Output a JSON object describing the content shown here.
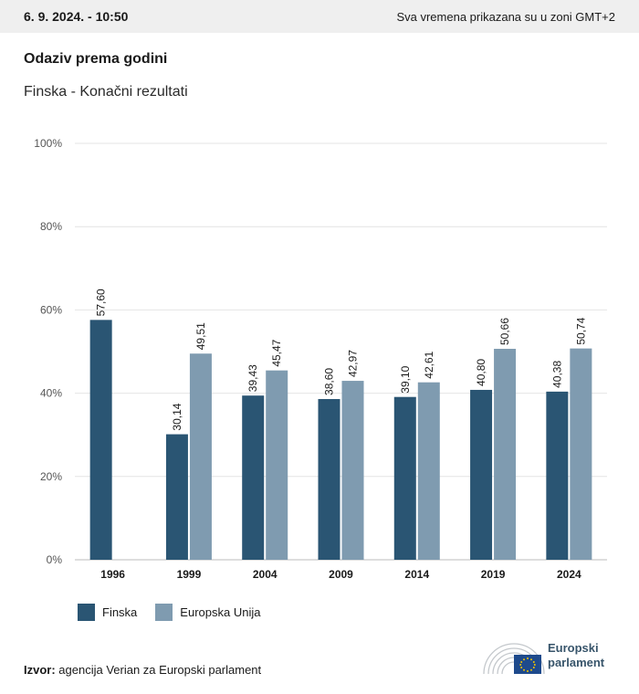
{
  "header": {
    "date": "6. 9. 2024. - 10:50",
    "timezone_note": "Sva vremena prikazana su u zoni GMT+2"
  },
  "title": "Odaziv prema godini",
  "subtitle": "Finska - Konačni rezultati",
  "legend": {
    "items": [
      {
        "label": "Finska",
        "color": "#2a5573"
      },
      {
        "label": "Europska Unija",
        "color": "#7f9bb0"
      }
    ]
  },
  "source": {
    "label": "Izvor:",
    "text": "agencija Verian za Europski parlament"
  },
  "logo": {
    "line1": "Europski",
    "line2": "parlament"
  },
  "chart_data": {
    "type": "bar",
    "categories": [
      "1996",
      "1999",
      "2004",
      "2009",
      "2014",
      "2019",
      "2024"
    ],
    "series": [
      {
        "name": "Finska",
        "color": "#2a5573",
        "values": [
          57.6,
          30.14,
          39.43,
          38.6,
          39.1,
          40.8,
          40.38
        ],
        "labels": [
          "57,60",
          "30,14",
          "39,43",
          "38,60",
          "39,10",
          "40,80",
          "40,38"
        ]
      },
      {
        "name": "Europska Unija",
        "color": "#7f9bb0",
        "values": [
          null,
          49.51,
          45.47,
          42.97,
          42.61,
          50.66,
          50.74
        ],
        "labels": [
          "",
          "49,51",
          "45,47",
          "42,97",
          "42,61",
          "50,66",
          "50,74"
        ]
      }
    ],
    "yticks": [
      "0%",
      "20%",
      "40%",
      "60%",
      "80%",
      "100%"
    ],
    "ylim": [
      0,
      100
    ],
    "grid": true,
    "legend_position": "bottom-left"
  }
}
